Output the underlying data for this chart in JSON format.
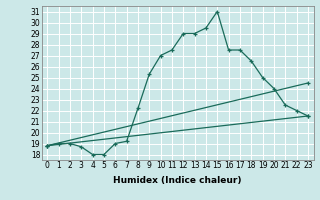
{
  "xlabel": "Humidex (Indice chaleur)",
  "bg_color": "#cce8e8",
  "line_color": "#1a6b5a",
  "grid_color": "#ffffff",
  "ylim": [
    17.5,
    31.5
  ],
  "xlim": [
    -0.5,
    23.5
  ],
  "yticks": [
    18,
    19,
    20,
    21,
    22,
    23,
    24,
    25,
    26,
    27,
    28,
    29,
    30,
    31
  ],
  "xticks": [
    0,
    1,
    2,
    3,
    4,
    5,
    6,
    7,
    8,
    9,
    10,
    11,
    12,
    13,
    14,
    15,
    16,
    17,
    18,
    19,
    20,
    21,
    22,
    23
  ],
  "line1_x": [
    0,
    1,
    2,
    3,
    4,
    5,
    6,
    7,
    8,
    9,
    10,
    11,
    12,
    13,
    14,
    15,
    16,
    17,
    18,
    19,
    20,
    21,
    22,
    23
  ],
  "line1_y": [
    18.8,
    19.0,
    19.0,
    18.7,
    18.0,
    18.0,
    19.0,
    19.2,
    22.2,
    25.3,
    27.0,
    27.5,
    29.0,
    29.0,
    29.5,
    31.0,
    27.5,
    27.5,
    26.5,
    25.0,
    24.0,
    22.5,
    22.0,
    21.5
  ],
  "line2_x": [
    0,
    23
  ],
  "line2_y": [
    18.8,
    24.5
  ],
  "line3_x": [
    0,
    23
  ],
  "line3_y": [
    18.8,
    21.5
  ],
  "tick_fontsize": 5.5,
  "xlabel_fontsize": 6.5,
  "linewidth": 0.9,
  "markersize": 3.5
}
